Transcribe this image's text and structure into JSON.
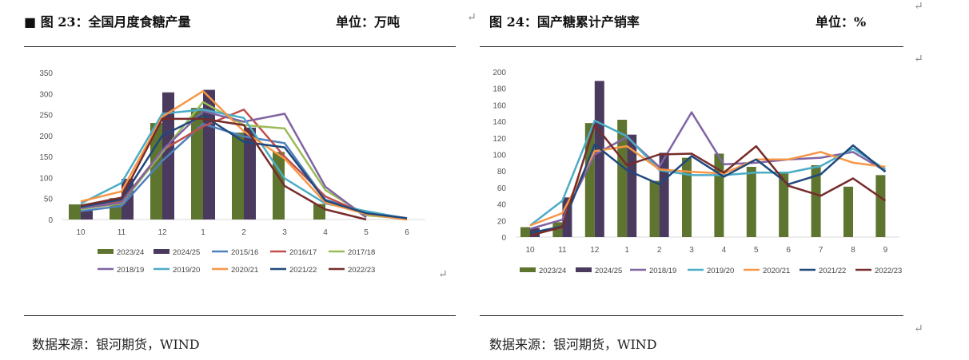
{
  "left": {
    "title": "■ 图 23：全国月度食糖产量",
    "unit": "单位：万吨",
    "source": "数据来源：银河期货，WIND"
  },
  "right": {
    "title": "图 24：国产糖累计产销率",
    "unit": "单位：%",
    "source": "数据来源：银河期货，WIND"
  },
  "return_mark": "↵",
  "chart_data": [
    {
      "type": "bar+line",
      "title": "全国月度食糖产量",
      "ylabel": "万吨",
      "ylim": [
        0,
        350
      ],
      "yticks": [
        0,
        50,
        100,
        150,
        200,
        250,
        300,
        350
      ],
      "categories": [
        "10",
        "11",
        "12",
        "1",
        "2",
        "3",
        "4",
        "5",
        "6"
      ],
      "legend": "bottom",
      "series": [
        {
          "name": "2023/24",
          "kind": "bar",
          "color": "#5e7530",
          "values": [
            36,
            51,
            230,
            266,
            207,
            161,
            37,
            null,
            null
          ]
        },
        {
          "name": "2024/25",
          "kind": "bar",
          "color": "#4a3a5e",
          "values": [
            21,
            97,
            303,
            309,
            219,
            null,
            null,
            null,
            null
          ]
        },
        {
          "name": "2015/16",
          "kind": "line",
          "color": "#4f81bd",
          "values": [
            20,
            32,
            140,
            228,
            198,
            182,
            47,
            18,
            3
          ]
        },
        {
          "name": "2016/17",
          "kind": "line",
          "color": "#c0504d",
          "values": [
            28,
            42,
            165,
            222,
            262,
            150,
            55,
            12,
            0
          ]
        },
        {
          "name": "2017/18",
          "kind": "line",
          "color": "#9bbb59",
          "values": [
            25,
            38,
            160,
            280,
            225,
            217,
            70,
            10,
            2
          ]
        },
        {
          "name": "2018/19",
          "kind": "line",
          "color": "#8064a2",
          "values": [
            27,
            40,
            165,
            258,
            233,
            252,
            78,
            5,
            null
          ]
        },
        {
          "name": "2019/20",
          "kind": "line",
          "color": "#4bacc6",
          "values": [
            38,
            87,
            252,
            262,
            242,
            98,
            38,
            20,
            2
          ]
        },
        {
          "name": "2020/21",
          "kind": "line",
          "color": "#f79646",
          "values": [
            43,
            67,
            245,
            306,
            210,
            145,
            40,
            13,
            0
          ]
        },
        {
          "name": "2021/22",
          "kind": "line",
          "color": "#1f497d",
          "values": [
            30,
            48,
            200,
            248,
            185,
            172,
            45,
            15,
            3
          ]
        },
        {
          "name": "2022/23",
          "kind": "line",
          "color": "#772c2a",
          "values": [
            33,
            52,
            240,
            240,
            225,
            80,
            24,
            0,
            null
          ]
        }
      ]
    },
    {
      "type": "bar+line",
      "title": "国产糖累计产销率",
      "ylabel": "%",
      "ylim": [
        0,
        200
      ],
      "yticks": [
        0,
        20,
        40,
        60,
        80,
        100,
        120,
        140,
        160,
        180,
        200
      ],
      "categories": [
        "10",
        "11",
        "12",
        "1",
        "2",
        "3",
        "4",
        "5",
        "6",
        "7",
        "8",
        "9"
      ],
      "legend": "bottom",
      "series": [
        {
          "name": "2023/24",
          "kind": "bar",
          "color": "#5e7530",
          "values": [
            12,
            18,
            138,
            142,
            68,
            96,
            101,
            85,
            78,
            87,
            61,
            75
          ]
        },
        {
          "name": "2024/25",
          "kind": "bar",
          "color": "#4a3a5e",
          "values": [
            11,
            48,
            189,
            124,
            102,
            null,
            null,
            null,
            null,
            null,
            null,
            null
          ]
        },
        {
          "name": "2018/19",
          "kind": "line",
          "color": "#8064a2",
          "values": [
            10,
            21,
            100,
            121,
            85,
            151,
            88,
            90,
            94,
            96,
            103,
            80
          ]
        },
        {
          "name": "2019/20",
          "kind": "line",
          "color": "#4bacc6",
          "values": [
            14,
            44,
            141,
            122,
            81,
            75,
            75,
            78,
            78,
            86,
            107,
            82
          ]
        },
        {
          "name": "2020/21",
          "kind": "line",
          "color": "#f79646",
          "values": [
            14,
            29,
            104,
            110,
            82,
            79,
            77,
            94,
            94,
            103,
            90,
            85
          ]
        },
        {
          "name": "2021/22",
          "kind": "line",
          "color": "#1f497d",
          "values": [
            5,
            13,
            112,
            81,
            64,
            98,
            73,
            94,
            64,
            76,
            111,
            79
          ]
        },
        {
          "name": "2022/23",
          "kind": "line",
          "color": "#772c2a",
          "values": [
            2,
            12,
            136,
            87,
            100,
            101,
            78,
            110,
            62,
            50,
            71,
            44
          ]
        }
      ]
    }
  ]
}
